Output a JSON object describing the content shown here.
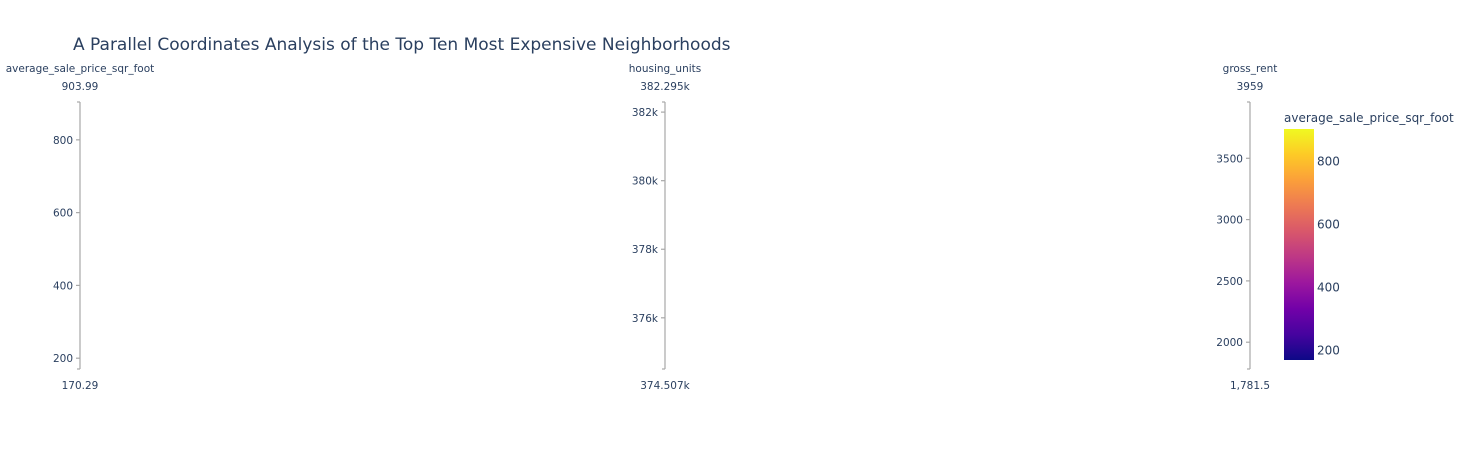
{
  "chart_data": {
    "type": "parallel_coordinates",
    "title": "A Parallel Coordinates Analysis of the Top Ten Most Expensive Neighborhoods",
    "dimensions": [
      {
        "label": "average_sale_price_sqr_foot",
        "range": [
          170.29,
          903.99
        ],
        "range_max_label": "903.99",
        "range_min_label": "170.29",
        "ticks": [
          200,
          400,
          600,
          800
        ],
        "tick_labels": [
          "200",
          "400",
          "600",
          "800"
        ]
      },
      {
        "label": "housing_units",
        "range": [
          374507,
          382295
        ],
        "range_max_label": "382.295k",
        "range_min_label": "374.507k",
        "ticks": [
          376000,
          378000,
          380000,
          382000
        ],
        "tick_labels": [
          "376k",
          "378k",
          "380k",
          "382k"
        ]
      },
      {
        "label": "gross_rent",
        "range": [
          1781.5,
          3959
        ],
        "range_max_label": "3959",
        "range_min_label": "1,781.5",
        "ticks": [
          2000,
          2500,
          3000,
          3500
        ],
        "tick_labels": [
          "2000",
          "2500",
          "3000",
          "3500"
        ]
      }
    ],
    "colorbar": {
      "title": "average_sale_price_sqr_foot",
      "range": [
        170.29,
        903.99
      ],
      "ticks": [
        200,
        400,
        600,
        800
      ],
      "tick_labels": [
        "200",
        "400",
        "600",
        "800"
      ],
      "colorscale": "plasma",
      "colors": [
        "#0d0887",
        "#46039f",
        "#7201a8",
        "#9c179e",
        "#bd3786",
        "#d8576b",
        "#ed7953",
        "#fb9f3a",
        "#fdca26",
        "#f0f921"
      ]
    }
  }
}
